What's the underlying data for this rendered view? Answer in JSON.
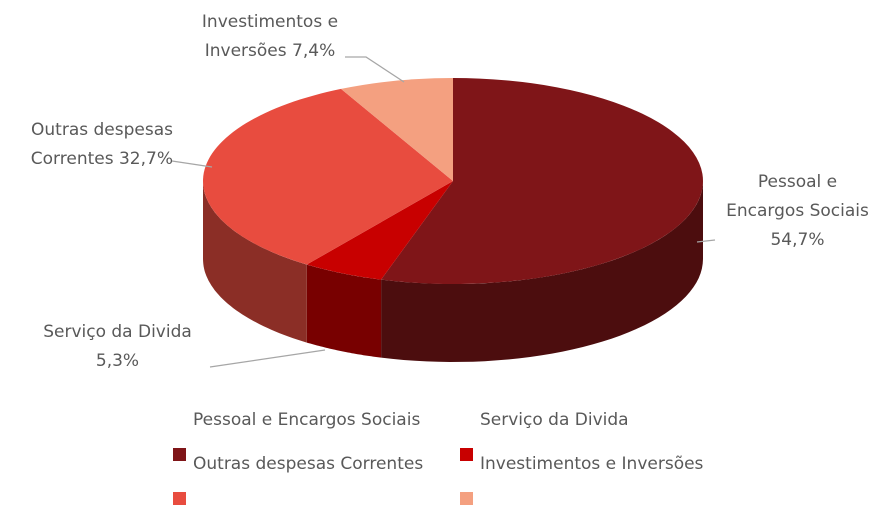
{
  "chart_data": {
    "type": "pie3d",
    "categories": [
      "Pessoal e Encargos Sociais",
      "Serviço da Divida",
      "Outras despesas Correntes",
      "Investimentos e Inversões"
    ],
    "values": [
      54.7,
      5.3,
      32.7,
      7.4
    ],
    "value_labels": [
      "54,7%",
      "5,3%",
      "32,7%",
      "7,4%"
    ],
    "colors": [
      "#7f1518",
      "#c80000",
      "#e84c3f",
      "#f4a080"
    ],
    "legend": "bottom"
  }
}
